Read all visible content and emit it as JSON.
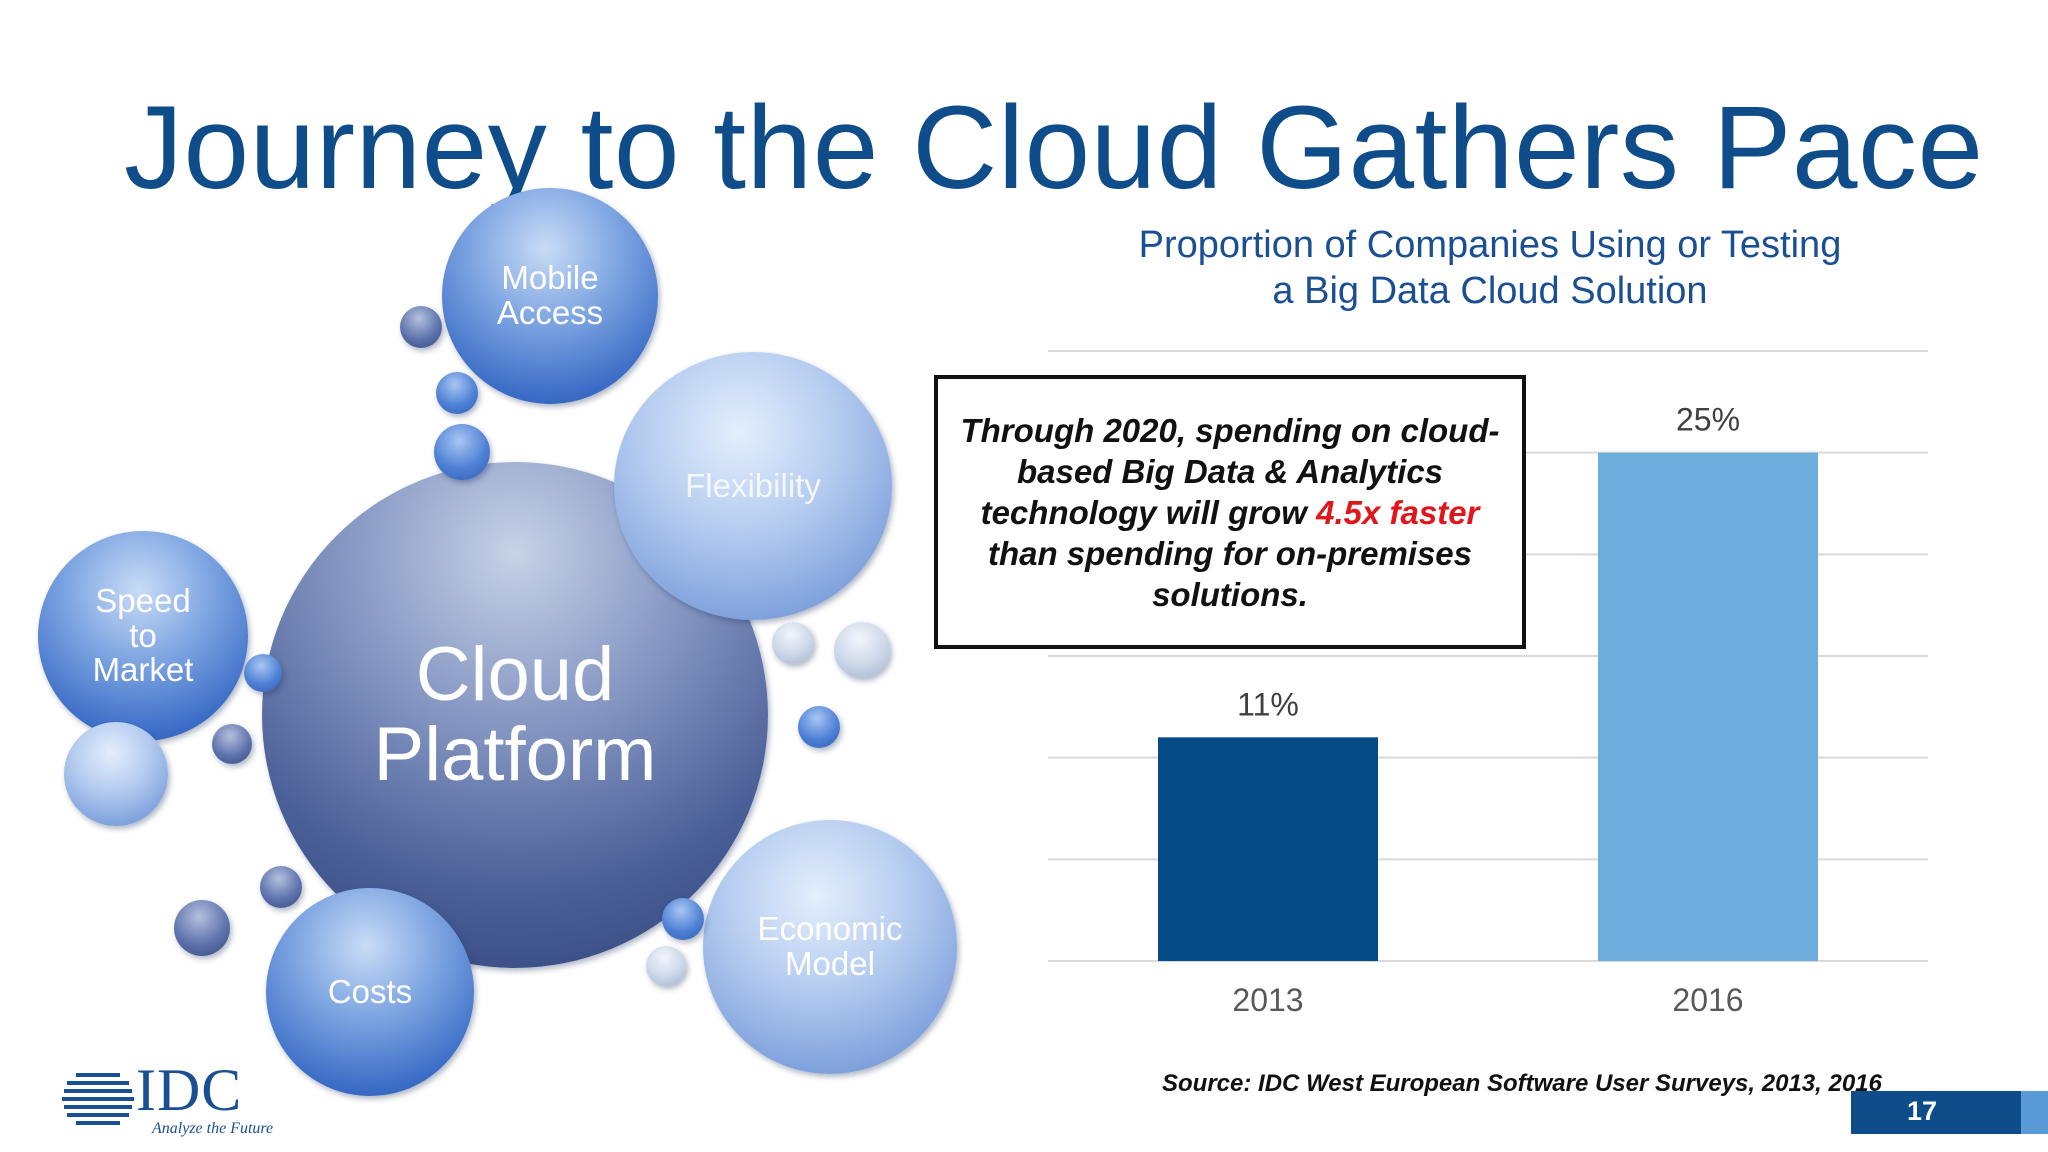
{
  "slide": {
    "title": "Journey to the Cloud Gathers Pace",
    "page_number": "17",
    "source": "Source: IDC West European Software User Surveys, 2013, 2016"
  },
  "logo": {
    "name": "IDC",
    "tagline": "Analyze the Future"
  },
  "diagram": {
    "center": "Cloud\nPlatform",
    "bubbles": [
      "Mobile\nAccess",
      "Flexibility",
      "Speed\nto\nMarket",
      "Economic\nModel",
      "Costs"
    ]
  },
  "callout": {
    "before": "Through 2020, spending on cloud-based Big Data & Analytics technology will grow ",
    "highlight": "4.5x faster",
    "after": " than spending for on-premises solutions.",
    "highlight_color": "#e0161b"
  },
  "chart_data": {
    "type": "bar",
    "title": "Proportion of Companies Using or Testing\na Big Data Cloud Solution",
    "categories": [
      "2013",
      "2016"
    ],
    "values": [
      11,
      25
    ],
    "data_labels": [
      "11%",
      "25%"
    ],
    "bar_colors": [
      "#034a87",
      "#6fadde"
    ],
    "ylim": [
      0,
      30
    ],
    "gridlines": true,
    "gridline_color": "#d9d9d9"
  },
  "colors": {
    "title": "#0f4c8a",
    "accent": "#5b9bd5"
  }
}
